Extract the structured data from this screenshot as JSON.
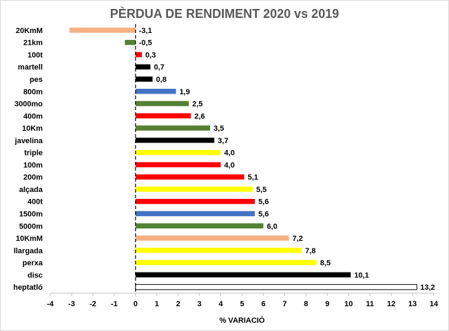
{
  "chart_data": {
    "type": "bar",
    "orientation": "horizontal",
    "title": "PÈRDUA DE RENDIMENT 2020 vs 2019",
    "xlabel": "% VARIACIÓ",
    "ylabel": "",
    "xlim": [
      -4,
      14
    ],
    "xticks": [
      -4,
      -3,
      -2,
      -1,
      0,
      1,
      2,
      3,
      4,
      5,
      6,
      7,
      8,
      9,
      10,
      11,
      12,
      13,
      14
    ],
    "grid": false,
    "legend": "none",
    "zero_line": "dashed",
    "categories": [
      "20KmM",
      "21km",
      "100t",
      "martell",
      "pes",
      "800m",
      "3000mo",
      "400m",
      "10Km",
      "javelina",
      "triple",
      "100m",
      "200m",
      "alçada",
      "400t",
      "1500m",
      "5000m",
      "10KmM",
      "llargada",
      "perxa",
      "disc",
      "heptatló"
    ],
    "values": [
      -3.1,
      -0.5,
      0.3,
      0.7,
      0.8,
      1.9,
      2.5,
      2.6,
      3.5,
      3.7,
      4.0,
      4.0,
      5.1,
      5.5,
      5.6,
      5.6,
      6.0,
      7.2,
      7.8,
      8.5,
      10.1,
      13.2
    ],
    "value_labels": [
      "-3,1",
      "-0,5",
      "0,3",
      "0,7",
      "0,8",
      "1,9",
      "2,5",
      "2,6",
      "3,5",
      "3,7",
      "4,0",
      "4,0",
      "5,1",
      "5,5",
      "5,6",
      "5,6",
      "6,0",
      "7,2",
      "7,8",
      "8,5",
      "10,1",
      "13,2"
    ],
    "bar_colors": [
      "#f4b183",
      "#548235",
      "#ff0000",
      "#000000",
      "#000000",
      "#4472c4",
      "#548235",
      "#ff0000",
      "#548235",
      "#000000",
      "#ffff00",
      "#ff0000",
      "#ff0000",
      "#ffff00",
      "#ff0000",
      "#4472c4",
      "#548235",
      "#f4b183",
      "#ffff00",
      "#ffff00",
      "#000000",
      "#ffffff"
    ]
  }
}
